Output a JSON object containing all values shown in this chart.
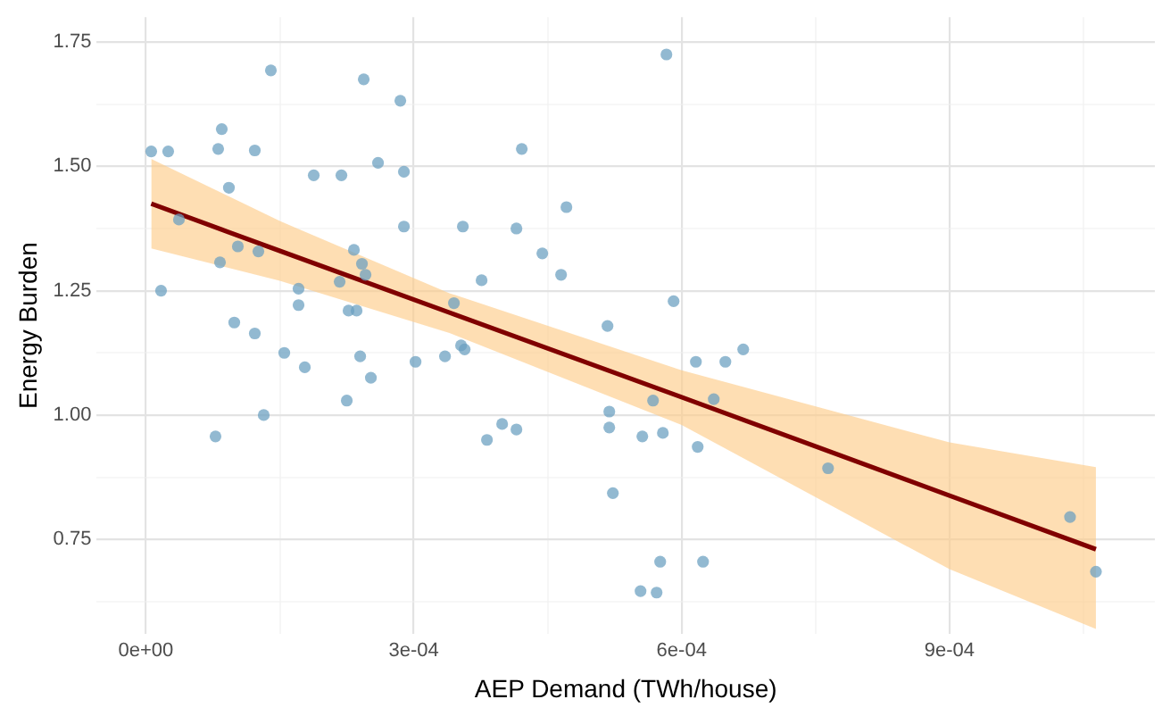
{
  "chart_data": {
    "type": "scatter",
    "xlabel": "AEP Demand (TWh/house)",
    "ylabel": "Energy Burden",
    "xlim": [
      -5.5e-05,
      0.00113
    ],
    "ylim": [
      0.56,
      1.8
    ],
    "xticks": [
      {
        "value": 0,
        "label": "0e+00"
      },
      {
        "value": 0.00015,
        "label": null
      },
      {
        "value": 0.0003,
        "label": "3e-04"
      },
      {
        "value": 0.00045,
        "label": null
      },
      {
        "value": 0.0006,
        "label": "6e-04"
      },
      {
        "value": 0.00075,
        "label": null
      },
      {
        "value": 0.0009,
        "label": "9e-04"
      },
      {
        "value": 0.00105,
        "label": null
      }
    ],
    "yticks": [
      {
        "value": 0.625,
        "label": null
      },
      {
        "value": 0.75,
        "label": "0.75"
      },
      {
        "value": 0.875,
        "label": null
      },
      {
        "value": 1,
        "label": "1.00"
      },
      {
        "value": 1.125,
        "label": null
      },
      1.25,
      {
        "value": 1.375,
        "label": null
      },
      {
        "value": 1.5,
        "label": "1.50"
      },
      {
        "value": 1.625,
        "label": null
      },
      1.75
    ],
    "grid": true,
    "series": [
      {
        "type": "scatter",
        "marker": "circle",
        "color": "#6a9fc0",
        "x": [
          6e-06,
          2.5e-05,
          3.7e-05,
          8.1e-05,
          8.5e-05,
          0.000122,
          0.00014,
          9.3e-05,
          0.000103,
          8.3e-05,
          0.000126,
          1.7e-05,
          9.9e-05,
          0.000122,
          0.000155,
          0.000178,
          0.000171,
          0.000171,
          0.000217,
          0.000233,
          0.000242,
          0.000246,
          0.000227,
          0.000236,
          0.00024,
          0.000188,
          0.000219,
          0.000244,
          0.000285,
          0.00026,
          0.000289,
          0.000289,
          0.000302,
          0.000583,
          0.000421,
          0.000355,
          0.000415,
          0.000471,
          0.000444,
          0.000465,
          0.000376,
          0.000345,
          0.000353,
          0.000357,
          0.000335,
          0.000517,
          0.000591,
          0.000616,
          0.000649,
          0.000669,
          7.8e-05,
          0.000132,
          0.000225,
          0.000252,
          0.000382,
          0.000399,
          0.000415,
          0.000568,
          0.000636,
          0.000519,
          0.000519,
          0.000556,
          0.000579,
          0.000618,
          0.000523,
          0.000764,
          0.000576,
          0.000624,
          0.000554,
          0.000572,
          0.001035,
          0.001064
        ],
        "values": [
          1.53,
          1.53,
          1.393,
          1.535,
          1.575,
          1.532,
          1.693,
          1.457,
          1.339,
          1.307,
          1.329,
          1.25,
          1.186,
          1.164,
          1.125,
          1.096,
          1.254,
          1.221,
          1.268,
          1.332,
          1.304,
          1.282,
          1.21,
          1.21,
          1.118,
          1.482,
          1.482,
          1.675,
          1.632,
          1.507,
          1.489,
          1.379,
          1.107,
          1.725,
          1.535,
          1.379,
          1.375,
          1.418,
          1.325,
          1.282,
          1.271,
          1.225,
          1.14,
          1.132,
          1.118,
          1.179,
          1.229,
          1.107,
          1.107,
          1.132,
          0.957,
          1.0,
          1.029,
          1.075,
          0.95,
          0.982,
          0.971,
          1.029,
          1.032,
          1.007,
          0.975,
          0.957,
          0.964,
          0.936,
          0.843,
          0.893,
          0.705,
          0.705,
          0.646,
          0.643,
          0.795,
          0.685
        ]
      },
      {
        "type": "line",
        "marker": "none",
        "line_style": "solid",
        "color": "#800000",
        "x": [
          6e-06,
          0.00015,
          0.00034,
          0.0006,
          0.0009,
          0.001064
        ],
        "values": [
          1.425,
          1.33,
          1.206,
          1.036,
          0.838,
          0.73
        ],
        "lower": [
          1.335,
          1.27,
          1.165,
          0.98,
          0.69,
          0.57
        ],
        "upper": [
          1.515,
          1.39,
          1.245,
          1.09,
          0.945,
          0.895
        ]
      }
    ]
  }
}
